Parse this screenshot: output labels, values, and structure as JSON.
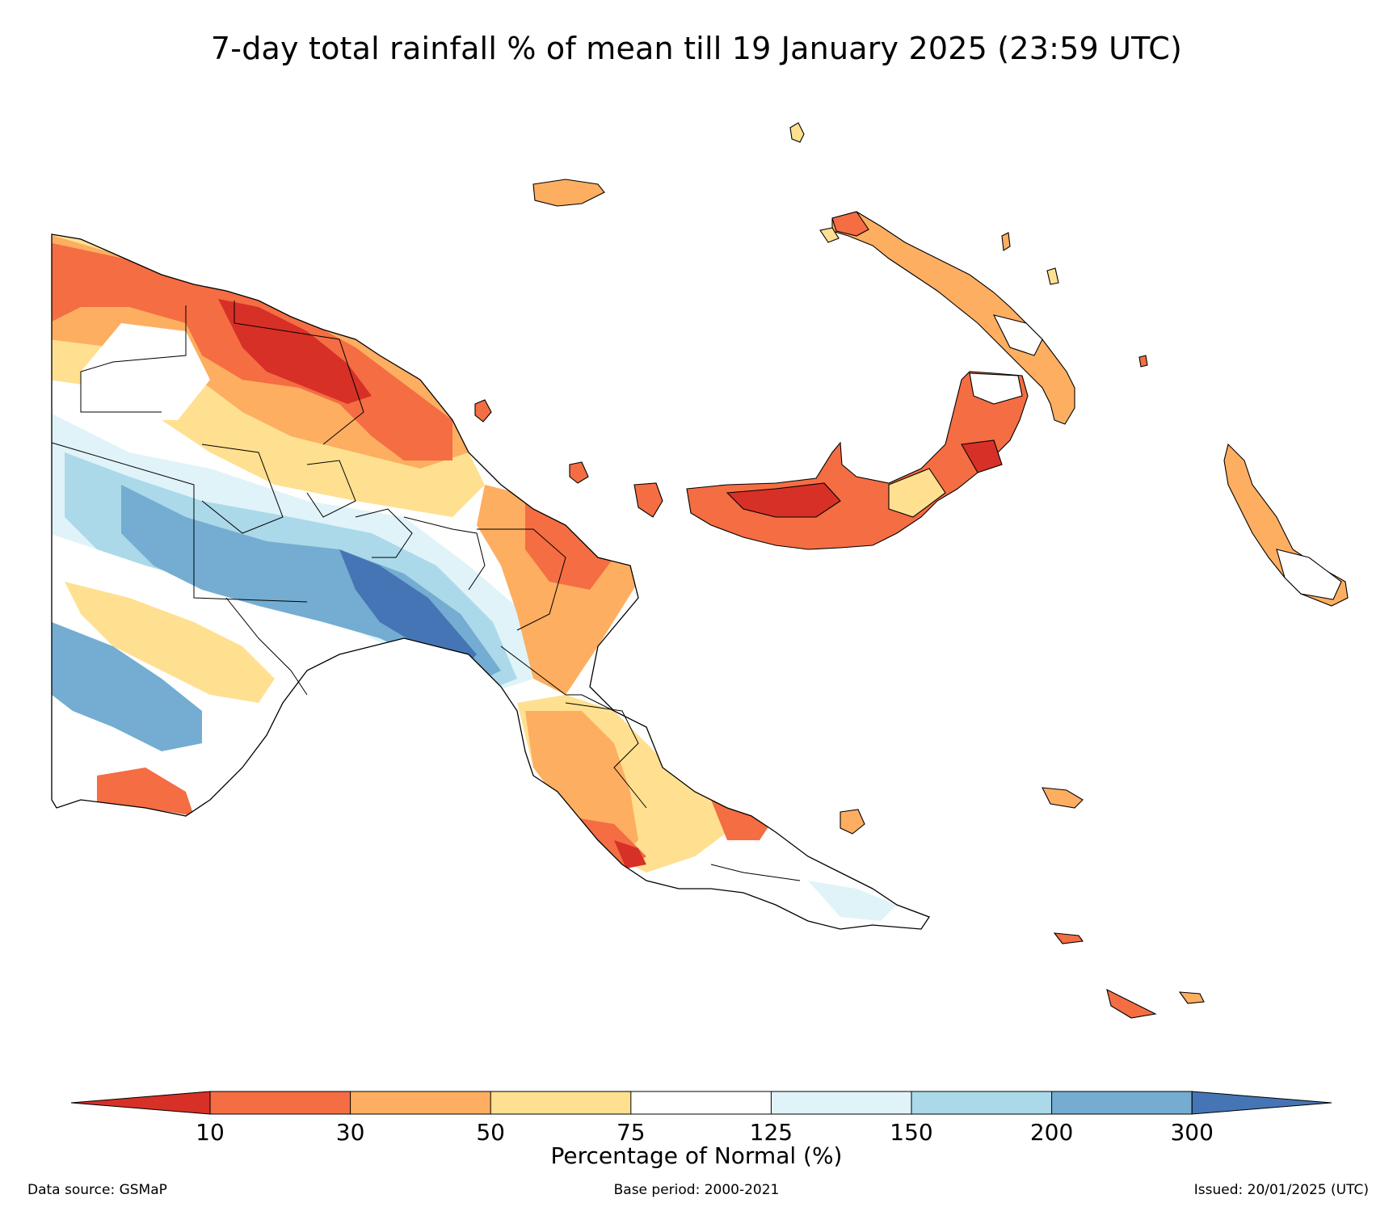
{
  "title": "7-day total rainfall % of mean till 19 January 2025 (23:59 UTC)",
  "colorbar": {
    "label": "Percentage of Normal (%)",
    "ticks": [
      "10",
      "30",
      "50",
      "75",
      "125",
      "150",
      "200",
      "300"
    ],
    "colors": {
      "under": "#d73027",
      "bins": [
        "#f46d43",
        "#fdae61",
        "#fee090",
        "#ffffff",
        "#e0f3f8",
        "#abd9e9",
        "#74add1"
      ],
      "over": "#4575b4"
    }
  },
  "footer": {
    "source": "Data source: GSMaP",
    "base_period": "Base period: 2000-2021",
    "issued": "Issued: 20/01/2025 (UTC)"
  }
}
